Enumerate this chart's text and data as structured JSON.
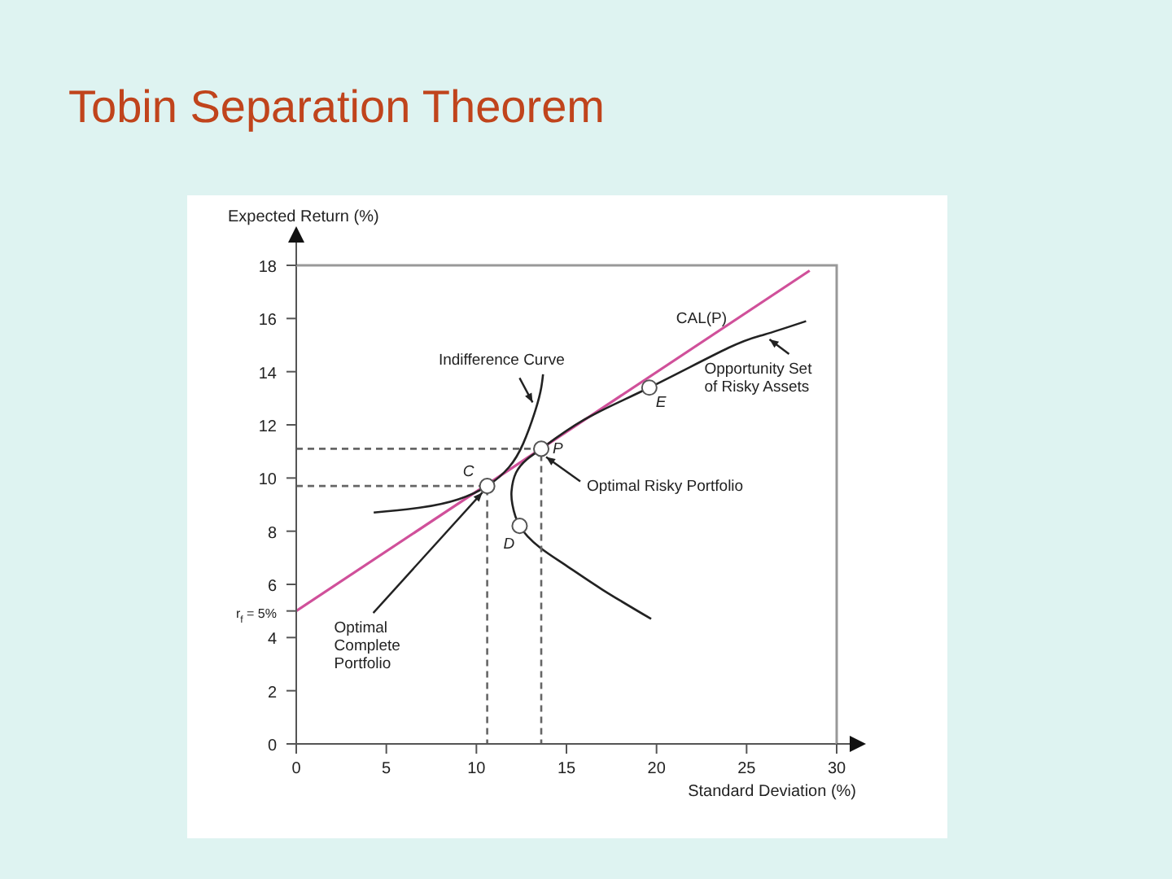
{
  "chart_data": {
    "type": "line",
    "title": "Tobin Separation Theorem",
    "xlabel": "Standard Deviation (%)",
    "ylabel": "Expected Return (%)",
    "xlim": [
      0,
      30
    ],
    "ylim": [
      0,
      18
    ],
    "xticks": [
      0,
      5,
      10,
      15,
      20,
      25,
      30
    ],
    "yticks": [
      0,
      2,
      4,
      {
        "value": 5,
        "label": "r$_{f}$ = 5%"
      },
      6,
      8,
      10,
      12,
      14,
      16,
      18
    ],
    "marker": "none",
    "series": [
      {
        "name": "CAL(P)",
        "color": "#d0509a",
        "line_style": "solid",
        "x": [
          0,
          28.5
        ],
        "values": [
          5,
          17.8
        ]
      },
      {
        "name": "Opportunity Set of Risky Assets",
        "color": "#222222",
        "line_style": "solid",
        "x": [
          19.7,
          17,
          15,
          13.5,
          12.4,
          12.0,
          11.95,
          12.2,
          12.8,
          13.6,
          16,
          19.6,
          24,
          26,
          28.3
        ],
        "values": [
          4.7,
          5.8,
          6.7,
          7.4,
          8.2,
          9.0,
          9.5,
          10.2,
          10.7,
          11.1,
          12.2,
          13.4,
          14.9,
          15.4,
          15.9
        ]
      },
      {
        "name": "Indifference Curve",
        "color": "#222222",
        "line_style": "solid",
        "x": [
          4.3,
          7,
          9,
          10.6,
          11.8,
          12.6,
          13.3,
          13.6,
          13.7
        ],
        "values": [
          8.7,
          8.9,
          9.2,
          9.7,
          10.4,
          11.3,
          12.6,
          13.4,
          13.9
        ]
      },
      {
        "type": "line",
        "color": "#666666",
        "line_style": "dashed",
        "x": [
          0,
          13.6,
          13.6
        ],
        "values": [
          11.1,
          11.1,
          0
        ]
      },
      {
        "type": "line",
        "color": "#666666",
        "line_style": "dashed",
        "x": [
          0,
          10.6,
          10.6
        ],
        "values": [
          9.7,
          9.7,
          0
        ]
      },
      {
        "type": "scatter",
        "color": "#555555",
        "marker": "circle",
        "x": [
          10.6,
          13.6,
          12.4,
          19.6
        ],
        "values": [
          9.7,
          11.1,
          8.2,
          13.4
        ]
      }
    ],
    "annotations": [
      {
        "text": "C",
        "x": 10.6,
        "y": 9.7
      },
      {
        "text": "P",
        "x": 13.6,
        "y": 11.1
      },
      {
        "text": "D",
        "x": 12.4,
        "y": 8.2
      },
      {
        "text": "E",
        "x": 19.6,
        "y": 13.4
      },
      {
        "text": "Optimal Risky Portfolio",
        "x": 13.6,
        "y": 11.1
      },
      {
        "text": "Optimal Complete Portfolio",
        "x": 10.6,
        "y": 9.7
      }
    ]
  }
}
